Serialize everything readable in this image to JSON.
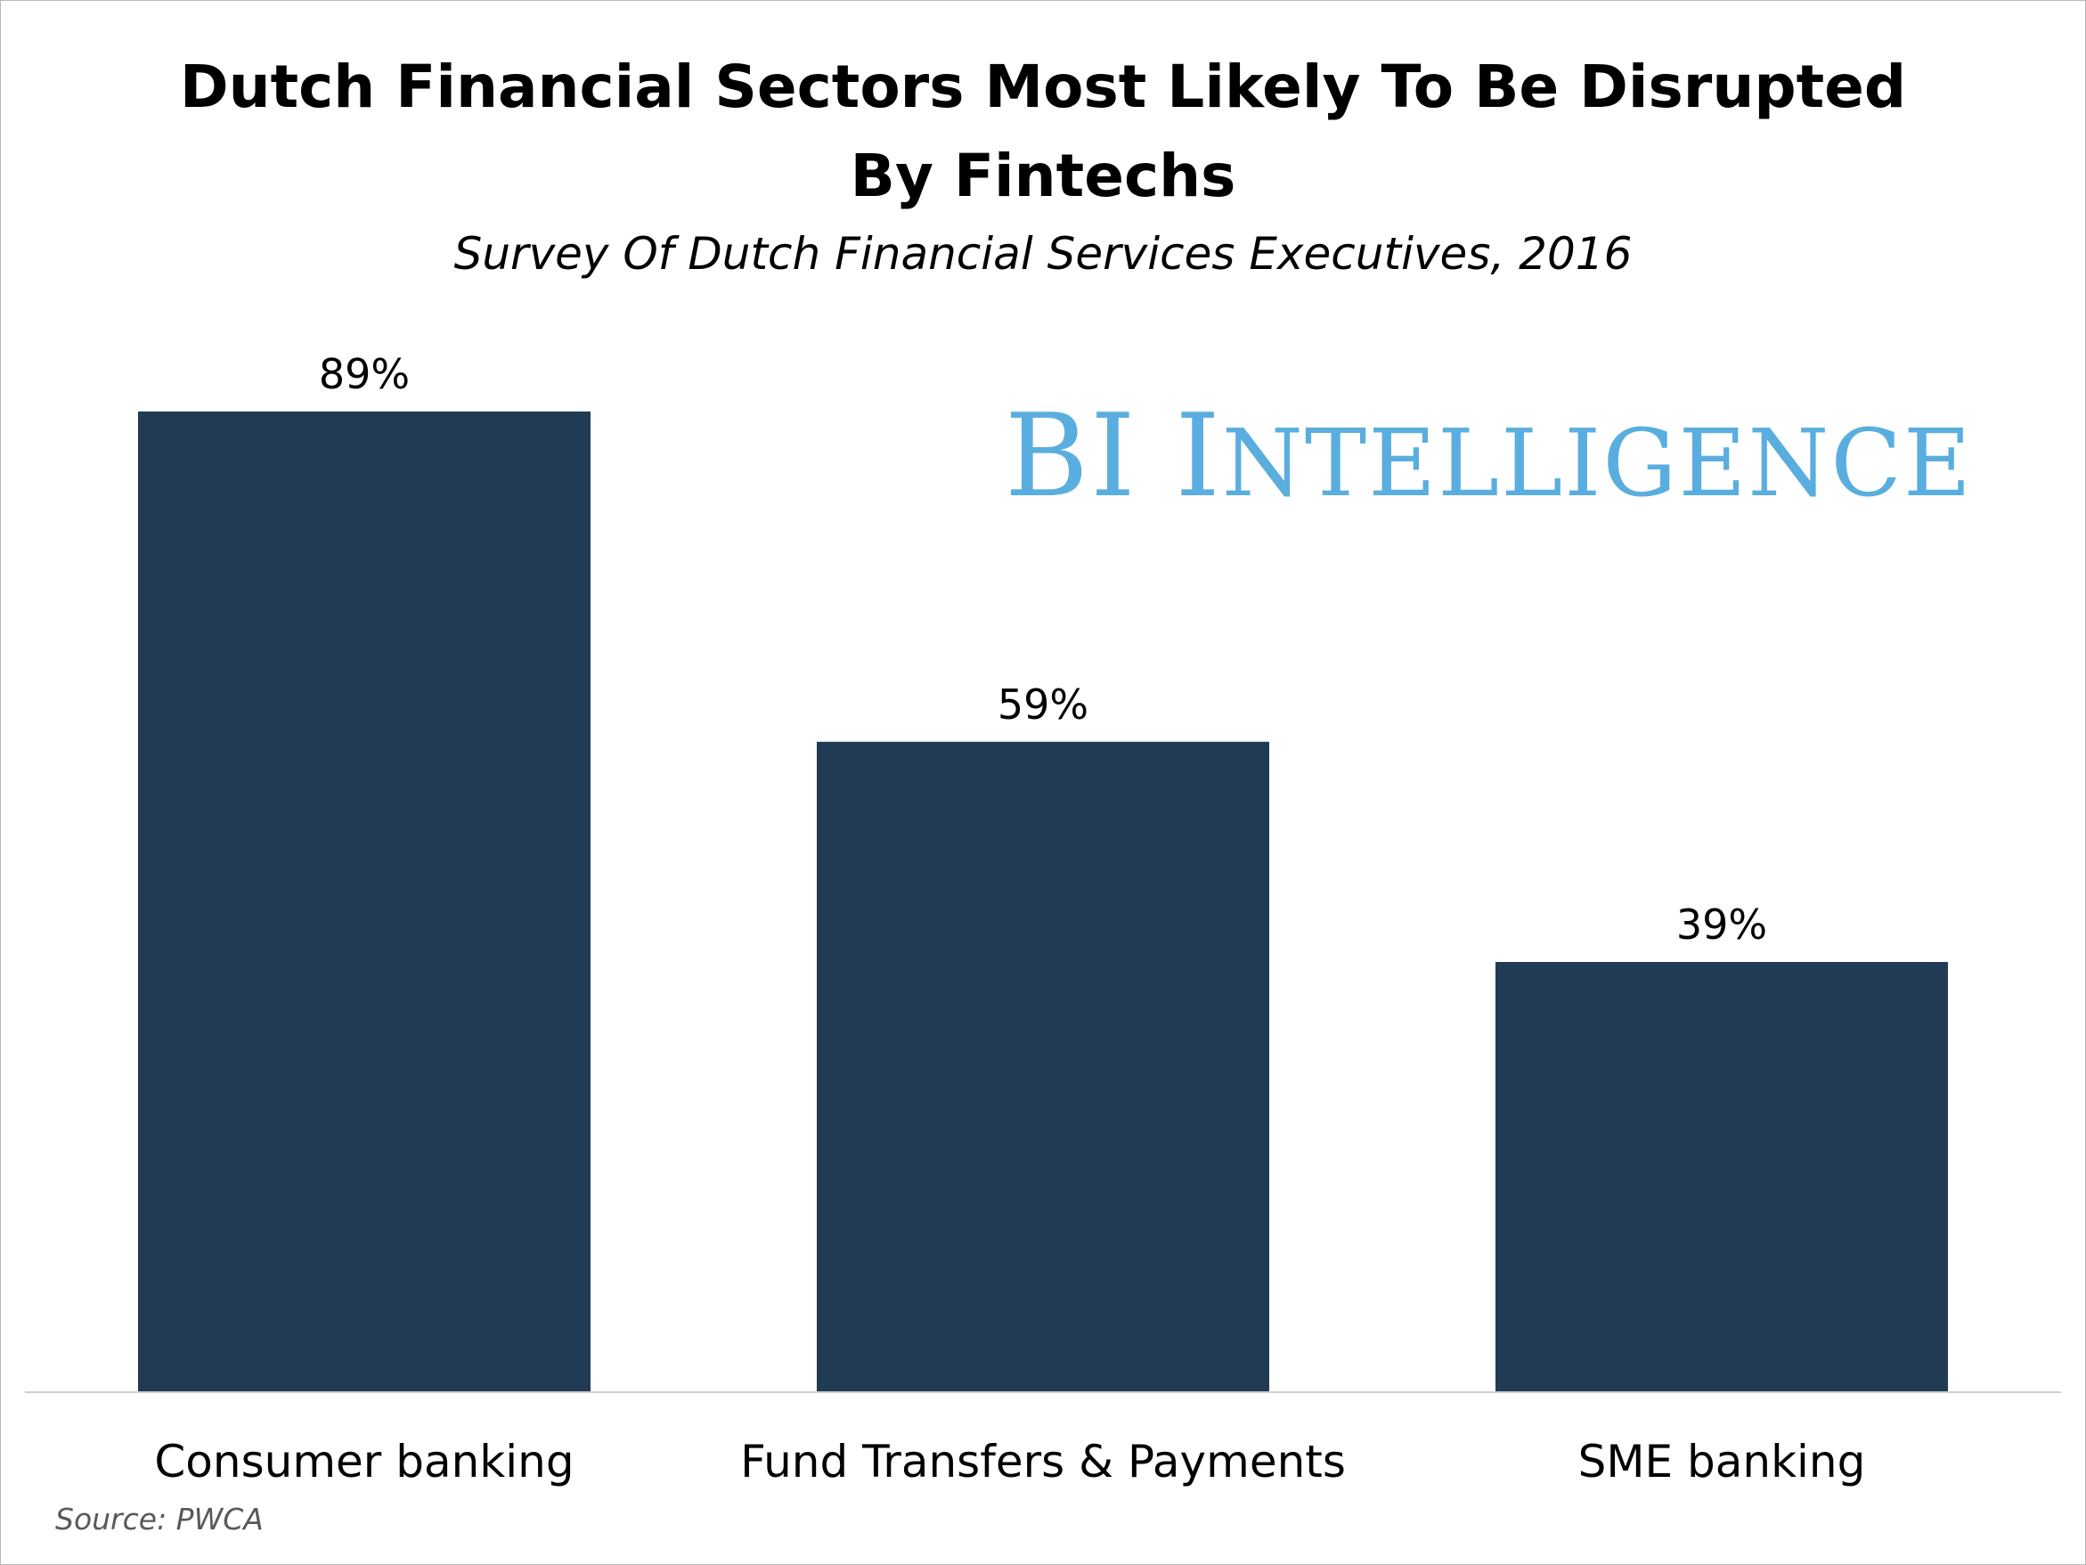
{
  "colors": {
    "bar": "#223b54",
    "logo": "#5aaedf",
    "axis": "#cfcfcf"
  },
  "chart_data": {
    "type": "bar",
    "title_lines": [
      "Dutch Financial Sectors Most Likely To Be Disrupted",
      "By Fintechs"
    ],
    "subtitle": "Survey Of Dutch Financial Services Executives, 2016",
    "categories": [
      "Consumer banking",
      "Fund Transfers & Payments",
      "SME banking"
    ],
    "values": [
      89,
      59,
      39
    ],
    "data_labels": [
      "89%",
      "59%",
      "39%"
    ],
    "ylim": [
      0,
      100
    ],
    "grid": false,
    "legend": "none"
  },
  "branding": {
    "logo_first": "BI",
    "logo_big_i": "I",
    "logo_rest": "NTELLIGENCE"
  },
  "source": "Source: PWCA"
}
